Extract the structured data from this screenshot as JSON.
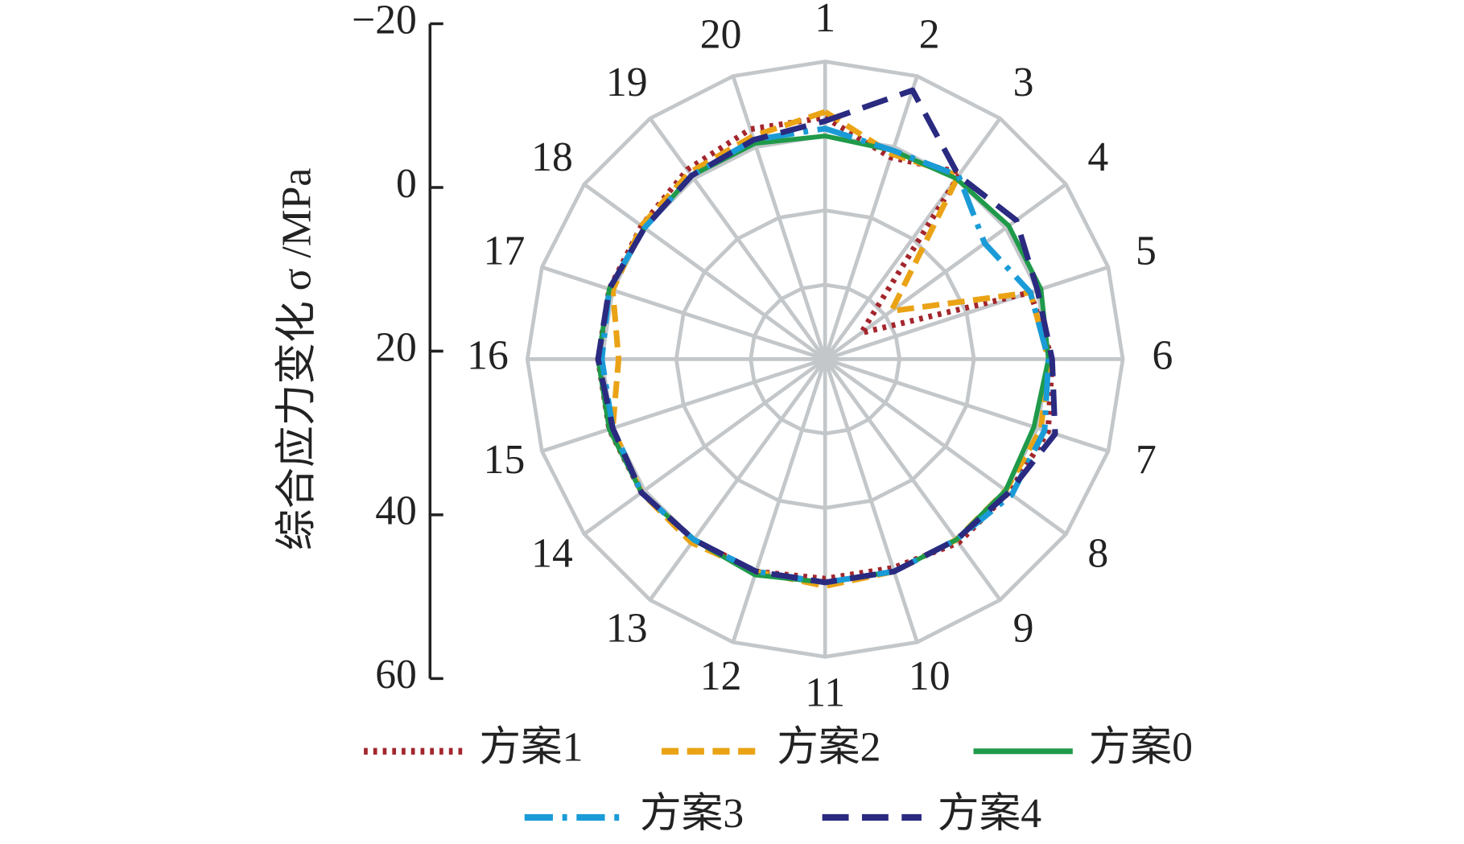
{
  "chart_data": {
    "type": "radar",
    "y_label": "综合应力变化 σ /MPa",
    "categories": [
      "1",
      "2",
      "3",
      "4",
      "5",
      "6",
      "7",
      "8",
      "9",
      "10",
      "11",
      "12",
      "13",
      "14",
      "15",
      "16",
      "17",
      "18",
      "19",
      "20"
    ],
    "ylim": [
      -20,
      60
    ],
    "yticks": [
      {
        "value": -20,
        "label": "−20"
      },
      0,
      20,
      40,
      60
    ],
    "radial_inverted": true,
    "grid": true,
    "series": [
      {
        "name": "方案1",
        "color": "#a3262c",
        "line_style": "dotted",
        "values": [
          -5,
          3,
          -2,
          48,
          2,
          -1,
          -3,
          -1,
          -1,
          1,
          1,
          0,
          0,
          -1,
          -1,
          -1,
          -1,
          -1,
          -3,
          -5
        ]
      },
      {
        "name": "方案2",
        "color": "#eaa315",
        "line_style": "dashed",
        "values": [
          -6.5,
          2,
          -1,
          38,
          2,
          0,
          -1,
          0,
          0,
          0,
          -1,
          0,
          -1,
          -1,
          0,
          4.5,
          0,
          -1,
          -2,
          -3
        ]
      },
      {
        "name": "方案0",
        "color": "#1f9a4a",
        "line_style": "solid",
        "values": [
          0,
          1,
          0,
          -1,
          -1,
          0,
          1,
          0,
          0,
          0,
          0,
          -1,
          0,
          -1,
          -1,
          -1,
          -1,
          0,
          -1,
          -1
        ]
      },
      {
        "name": "方案3",
        "color": "#1a9bd7",
        "line_style": "dashdot",
        "values": [
          -2,
          1,
          -1,
          7,
          2,
          0,
          -2,
          -2,
          0,
          0,
          0,
          0,
          0,
          -1,
          0,
          0,
          -1,
          0,
          -1,
          -2
        ]
      },
      {
        "name": "方案4",
        "color": "#2a2a80",
        "line_style": "longdash",
        "values": [
          -4,
          -16,
          -1,
          -3.5,
          0,
          -1,
          -5,
          -1,
          0,
          0,
          0,
          0,
          0,
          -1,
          0,
          -1,
          -1,
          0,
          -1,
          -2
        ]
      }
    ]
  }
}
